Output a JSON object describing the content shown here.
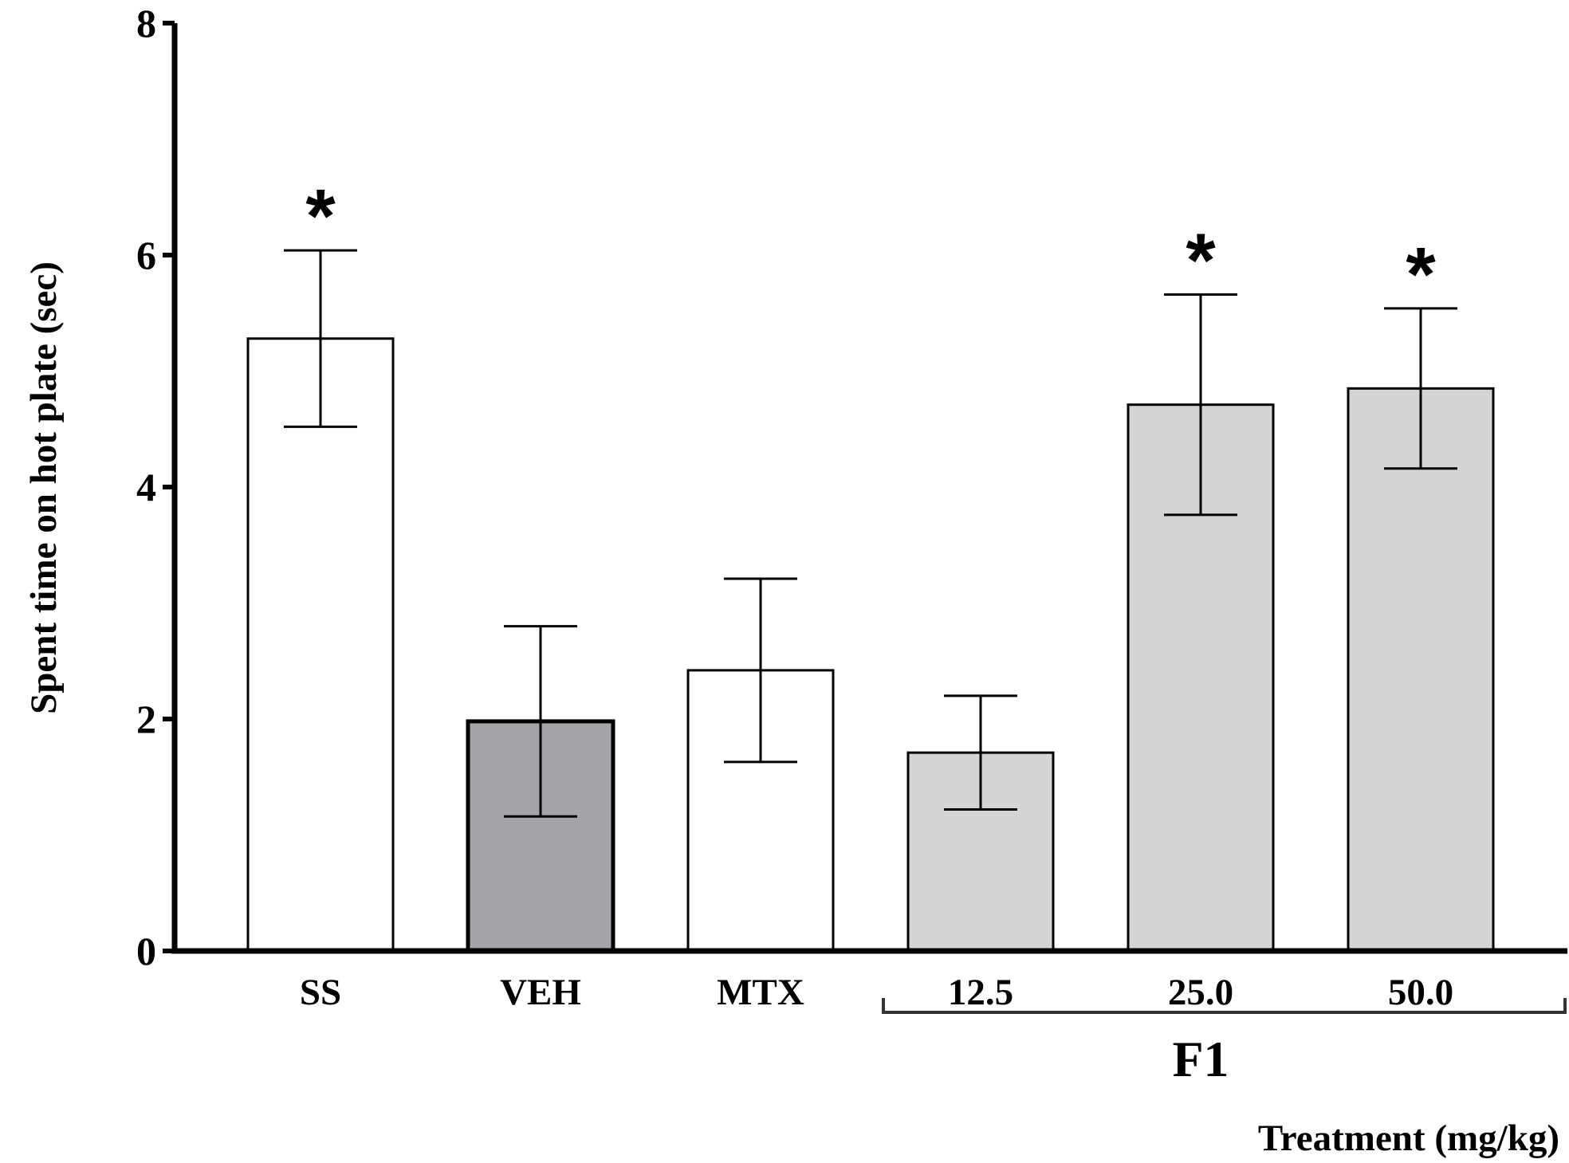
{
  "chart_data": {
    "type": "bar",
    "title": "",
    "xlabel": "Treatment (mg/kg)",
    "ylabel": "Spent  time on hot plate (sec)",
    "ylim": [
      0,
      8
    ],
    "yticks": [
      "0",
      "2",
      "4",
      "6",
      "8"
    ],
    "categories": [
      "SS",
      "VEH",
      "MTX",
      "12.5",
      "25.0",
      "50.0"
    ],
    "values": [
      5.28,
      1.98,
      2.42,
      1.71,
      4.71,
      4.85
    ],
    "errors": [
      0.76,
      0.82,
      0.79,
      0.49,
      0.95,
      0.69
    ],
    "colors": [
      "#ffffff",
      "#a4a5a9",
      "#ffffff",
      "#d4d4d4",
      "#d4d4d4",
      "#d4d4d4"
    ],
    "significance": [
      "*",
      "",
      "",
      "",
      "*",
      "*"
    ],
    "group": {
      "label": "F1",
      "categories": [
        "12.5",
        "25.0",
        "50.0"
      ]
    },
    "grid": false,
    "legend": "none"
  }
}
